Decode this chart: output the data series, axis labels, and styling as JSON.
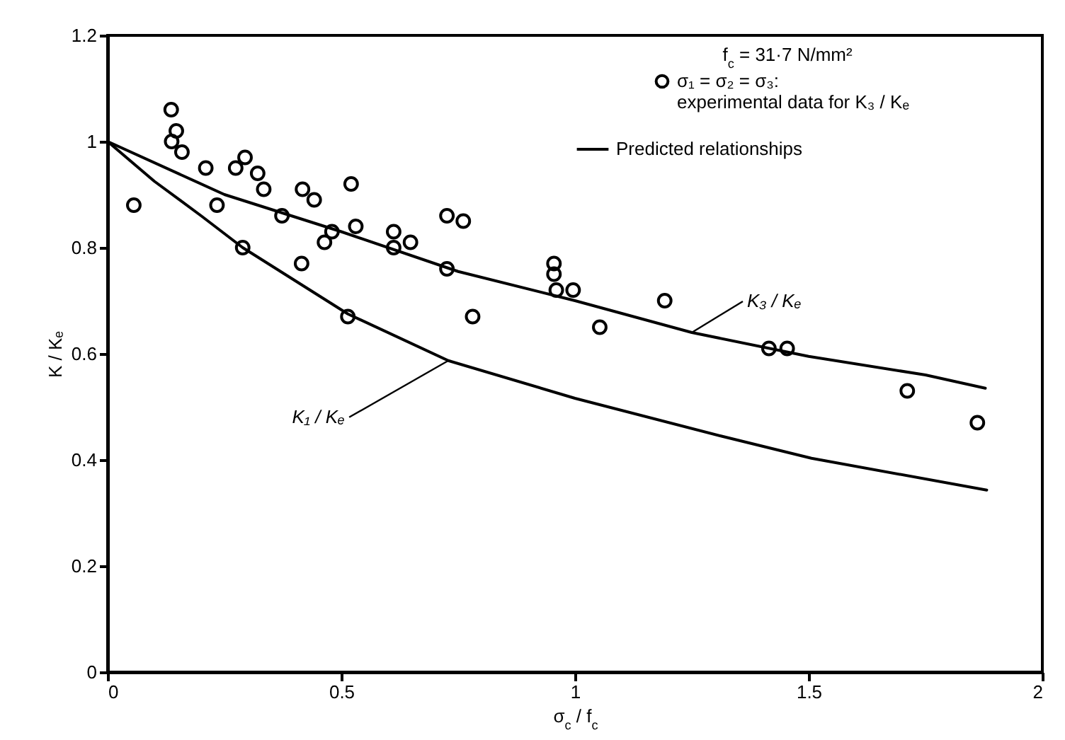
{
  "chart_data": {
    "type": "scatter",
    "xlabel": "σ$_{c}$ / f$_{c}$",
    "ylabel": "K / Kₑ",
    "xlim": [
      0,
      2
    ],
    "ylim": [
      0,
      1.2
    ],
    "xticks": [
      0,
      0.5,
      1,
      1.5,
      2
    ],
    "yticks": [
      0,
      0.2,
      0.4,
      0.6,
      0.8,
      1.0,
      1.2
    ],
    "grid": false,
    "legend": "top right",
    "series": [
      {
        "name": "σ₁ = σ₂ = σ₃: experimental data for K₃ / Kₑ",
        "marker": "circle",
        "color": "#000000",
        "x": [
          0.056,
          0.136,
          0.137,
          0.147,
          0.159,
          0.21,
          0.234,
          0.274,
          0.289,
          0.294,
          0.321,
          0.334,
          0.373,
          0.415,
          0.417,
          0.442,
          0.464,
          0.48,
          0.514,
          0.521,
          0.531,
          0.612,
          0.612,
          0.648,
          0.726,
          0.726,
          0.761,
          0.781,
          0.955,
          0.955,
          0.96,
          0.996,
          1.053,
          1.192,
          1.415,
          1.454,
          1.711,
          1.861
        ],
        "values": [
          0.88,
          1.06,
          1.0,
          1.02,
          0.98,
          0.95,
          0.88,
          0.95,
          0.8,
          0.97,
          0.94,
          0.91,
          0.86,
          0.77,
          0.91,
          0.89,
          0.81,
          0.83,
          0.67,
          0.92,
          0.84,
          0.83,
          0.8,
          0.81,
          0.86,
          0.76,
          0.85,
          0.67,
          0.77,
          0.75,
          0.72,
          0.72,
          0.65,
          0.7,
          0.61,
          0.61,
          0.53,
          0.47
        ]
      },
      {
        "name": "Predicted relationships",
        "type": "line",
        "line_style": "solid",
        "color": "#000000",
        "x": [
          0,
          0.25,
          0.5,
          0.75,
          1.0,
          1.25,
          1.5,
          1.75,
          1.878
        ],
        "values": [
          1.0,
          0.9,
          0.83,
          0.755,
          0.7,
          0.64,
          0.595,
          0.56,
          0.535
        ]
      },
      {
        "type": "line",
        "line_style": "solid",
        "color": "#000000",
        "x": [
          0,
          0.1,
          0.2,
          0.289,
          0.514,
          0.729,
          1.0,
          1.312,
          1.506,
          1.881
        ],
        "values": [
          1.0,
          0.925,
          0.86,
          0.8,
          0.675,
          0.587,
          0.516,
          0.445,
          0.403,
          0.343
        ]
      }
    ],
    "annotations": [
      "f$_{c}$ = 31·7 N/mm²",
      {
        "text": "K₃ / Kₑ",
        "x": 1.25,
        "y": 0.64
      },
      {
        "text": "K₁ / Kₑ",
        "x": 0.729,
        "y": 0.587
      }
    ]
  }
}
